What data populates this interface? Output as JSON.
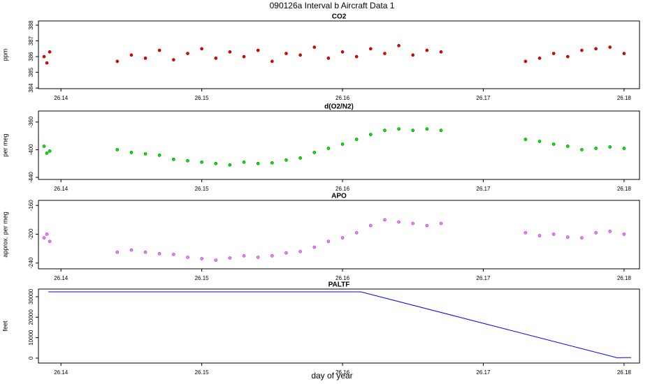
{
  "title": "090126a   Interval b Aircraft Data 1",
  "xlabel": "day of year",
  "chart_data": [
    {
      "type": "scatter",
      "title": "CO2",
      "ylabel": "ppm",
      "color": "#ee0000",
      "edge": "#880000",
      "x": [
        26.1388,
        26.139,
        26.1392,
        26.144,
        26.145,
        26.146,
        26.147,
        26.148,
        26.149,
        26.15,
        26.151,
        26.152,
        26.153,
        26.154,
        26.155,
        26.156,
        26.157,
        26.158,
        26.159,
        26.16,
        26.161,
        26.162,
        26.163,
        26.164,
        26.165,
        26.166,
        26.167,
        26.173,
        26.174,
        26.175,
        26.176,
        26.177,
        26.178,
        26.179,
        26.18
      ],
      "values": [
        386.0,
        385.6,
        386.3,
        385.7,
        386.1,
        385.9,
        386.4,
        385.8,
        386.2,
        386.5,
        385.9,
        386.3,
        386.0,
        386.4,
        385.7,
        386.2,
        386.1,
        386.6,
        385.9,
        386.3,
        386.0,
        386.5,
        386.2,
        386.7,
        386.1,
        386.4,
        386.3,
        385.7,
        385.9,
        386.2,
        386.0,
        386.4,
        386.5,
        386.6,
        386.2
      ],
      "xlim": [
        26.1384,
        26.1811
      ],
      "xticks": [
        26.14,
        26.15,
        26.16,
        26.17,
        26.18
      ],
      "ylim": [
        383.96,
        388.27
      ],
      "yticks": [
        384,
        385,
        386,
        387,
        388
      ]
    },
    {
      "type": "scatter",
      "title": "d(O2/N2)",
      "ylabel": "per meg",
      "color": "#00ee00",
      "edge": "#006600",
      "x": [
        26.1388,
        26.139,
        26.1392,
        26.144,
        26.145,
        26.146,
        26.147,
        26.148,
        26.149,
        26.15,
        26.151,
        26.152,
        26.153,
        26.154,
        26.155,
        26.156,
        26.157,
        26.158,
        26.159,
        26.16,
        26.161,
        26.162,
        26.163,
        26.164,
        26.165,
        26.166,
        26.167,
        26.173,
        26.174,
        26.175,
        26.176,
        26.177,
        26.178,
        26.179,
        26.18
      ],
      "values": [
        -395,
        -405,
        -402,
        -400,
        -404,
        -406,
        -408,
        -414,
        -416,
        -418,
        -420,
        -422,
        -418,
        -420,
        -419,
        -415,
        -412,
        -404,
        -398,
        -392,
        -385,
        -378,
        -372,
        -370,
        -372,
        -370,
        -372,
        -385,
        -388,
        -392,
        -395,
        -400,
        -398,
        -396,
        -398
      ],
      "xlim": [
        26.1384,
        26.1811
      ],
      "xticks": [
        26.14,
        26.15,
        26.16,
        26.17,
        26.18
      ],
      "ylim": [
        -443,
        -344
      ],
      "yticks": [
        -440,
        -400,
        -360
      ]
    },
    {
      "type": "scatter",
      "title": "APO",
      "ylabel": "approx. per meg",
      "color": "#ee82ee",
      "edge": "#9932cc",
      "x": [
        26.1388,
        26.139,
        26.1392,
        26.144,
        26.145,
        26.146,
        26.147,
        26.148,
        26.149,
        26.15,
        26.151,
        26.152,
        26.153,
        26.154,
        26.155,
        26.156,
        26.157,
        26.158,
        26.159,
        26.16,
        26.161,
        26.162,
        26.163,
        26.164,
        26.165,
        26.166,
        26.167,
        26.173,
        26.174,
        26.175,
        26.176,
        26.177,
        26.178,
        26.179,
        26.18
      ],
      "values": [
        -205,
        -200,
        -210,
        -225,
        -222,
        -225,
        -227,
        -228,
        -232,
        -234,
        -236,
        -233,
        -230,
        -232,
        -230,
        -226,
        -224,
        -218,
        -210,
        -205,
        -198,
        -188,
        -180,
        -183,
        -185,
        -188,
        -185,
        -198,
        -202,
        -200,
        -204,
        -205,
        -198,
        -196,
        -200
      ],
      "xlim": [
        26.1384,
        26.1811
      ],
      "xticks": [
        26.14,
        26.15,
        26.16,
        26.17,
        26.18
      ],
      "ylim": [
        -248,
        -153
      ],
      "yticks": [
        -240,
        -200,
        -160
      ]
    },
    {
      "type": "line",
      "title": "PALTF",
      "ylabel": "feet",
      "color": "#0000ff",
      "x": [
        26.1391,
        26.1613,
        26.1795,
        26.1805
      ],
      "values": [
        32400,
        32400,
        200,
        300
      ],
      "xlim": [
        26.1384,
        26.1811
      ],
      "xticks": [
        26.14,
        26.15,
        26.16,
        26.17,
        26.18
      ],
      "ylim": [
        -2400,
        33750
      ],
      "yticks": [
        0,
        10000,
        20000,
        30000
      ]
    }
  ]
}
